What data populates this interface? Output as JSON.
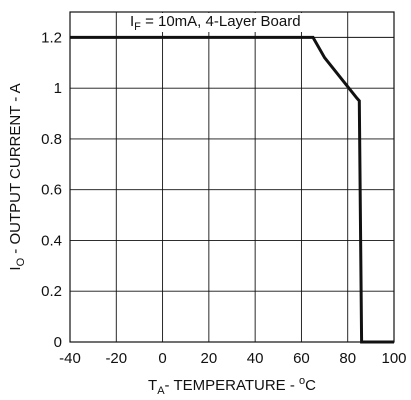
{
  "chart_data": {
    "type": "line",
    "annotation": {
      "symbol": "I",
      "subscript": "F",
      "text": " = 10mA, 4-Layer Board"
    },
    "xlabel": {
      "symbol": "T",
      "subscript": "A",
      "text": "- TEMPERATURE - ",
      "superscript": "o",
      "unit": "C"
    },
    "ylabel": {
      "symbol": "I",
      "subscript": "O",
      "text": " - OUTPUT CURRENT - A"
    },
    "xlim": [
      -40,
      100
    ],
    "ylim": [
      0,
      1.3
    ],
    "x_ticks": [
      -40,
      -20,
      0,
      20,
      40,
      60,
      80,
      100
    ],
    "x_tick_labels": [
      "-40",
      "-20",
      "0",
      "20",
      "40",
      "60",
      "80",
      "100"
    ],
    "y_ticks": [
      0,
      0.2,
      0.4,
      0.6,
      0.8,
      1,
      1.2
    ],
    "y_tick_labels": [
      "0",
      "0.2",
      "0.4",
      "0.6",
      "0.8",
      "1",
      "1.2"
    ],
    "grid": true,
    "series": [
      {
        "x": [
          -40,
          65,
          70,
          84,
          85,
          86,
          100
        ],
        "y": [
          1.2,
          1.2,
          1.12,
          0.96,
          0.95,
          0,
          0
        ],
        "color": "#111111"
      }
    ]
  }
}
